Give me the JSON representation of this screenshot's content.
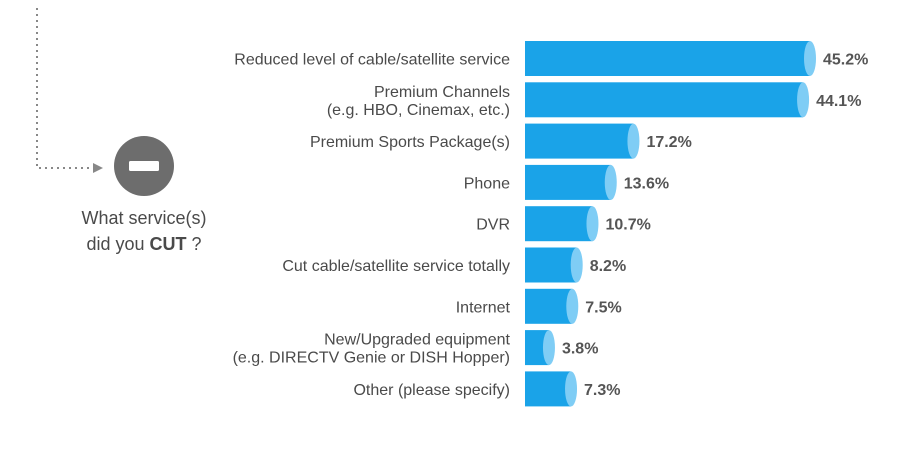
{
  "side_panel": {
    "question_line1": "What service(s)",
    "question_line2_prefix": "did you ",
    "question_line2_emphasis": "CUT",
    "question_line2_suffix": " ?",
    "icon": "minus-circle-icon",
    "icon_color": "#6d6d6d"
  },
  "chart_data": {
    "type": "bar",
    "orientation": "horizontal",
    "title": "",
    "xlabel": "",
    "ylabel": "",
    "xlim": [
      0,
      45.2
    ],
    "grid": false,
    "bar_color": "#1aa3e8",
    "bar_cap_color": "#7fcdf5",
    "categories": [
      [
        "Reduced level of cable/satellite service"
      ],
      [
        "Premium Channels",
        "(e.g. HBO, Cinemax, etc.)"
      ],
      [
        "Premium Sports Package(s)"
      ],
      [
        "Phone"
      ],
      [
        "DVR"
      ],
      [
        "Cut cable/satellite service totally"
      ],
      [
        "Internet"
      ],
      [
        "New/Upgraded equipment",
        "(e.g. DIRECTV Genie or DISH Hopper)"
      ],
      [
        "Other (please specify)"
      ]
    ],
    "values": [
      45.2,
      44.1,
      17.2,
      13.6,
      10.7,
      8.2,
      7.5,
      3.8,
      7.3
    ],
    "value_labels": [
      "45.2%",
      "44.1%",
      "17.2%",
      "13.6%",
      "10.7%",
      "8.2%",
      "7.5%",
      "3.8%",
      "7.3%"
    ]
  }
}
